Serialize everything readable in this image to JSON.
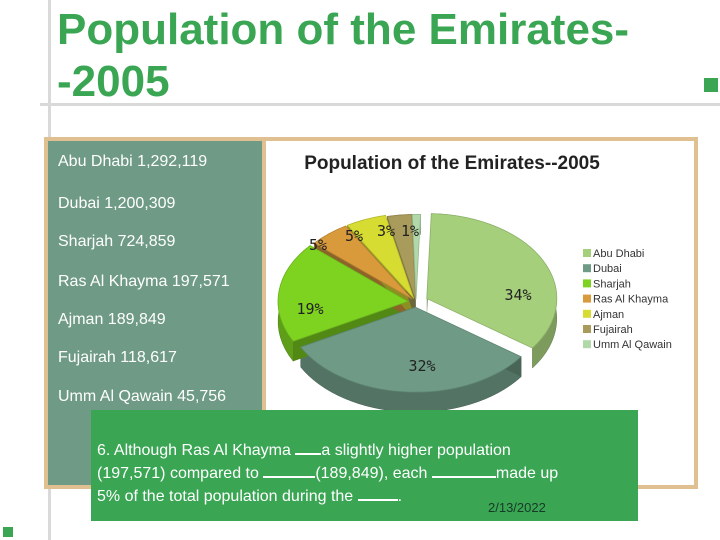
{
  "slide": {
    "title": "Population of the Emirates--2005",
    "date": "2/13/2022"
  },
  "population_list": [
    "Abu Dhabi 1,292,119",
    "Dubai 1,200,309",
    "Sharjah 724,859",
    "Ras Al Khayma 197,571",
    "Ajman 189,849",
    " Fujairah 118,617",
    "Umm Al Qawain 45,756"
  ],
  "question": {
    "number": "6.",
    "part1": "Although Ras Al Khayma ",
    "part2": "a slightly higher population",
    "part3": "(197,571) compared to ",
    "part4": "(189,849), each ",
    "part5": "made up",
    "part6": "5% of the total population during the ",
    "part7": "."
  },
  "chart_data": {
    "type": "pie",
    "title": "Population of the Emirates--2005",
    "categories": [
      "Abu Dhabi",
      "Dubai",
      "Sharjah",
      "Ras Al Khayma",
      "Ajman",
      "Fujairah",
      "Umm Al Qawain"
    ],
    "values": [
      34,
      32,
      19,
      5,
      5,
      3,
      1
    ],
    "data_labels": [
      "34%",
      "32%",
      "19%",
      "5%",
      "5%",
      "3%",
      "1%"
    ],
    "colors": [
      "#a5cf7b",
      "#6f9b86",
      "#7ed321",
      "#d99a3c",
      "#d7dc33",
      "#a99b5c",
      "#b0d8a8"
    ],
    "legend_position": "right",
    "exploded": true,
    "three_d": true
  }
}
